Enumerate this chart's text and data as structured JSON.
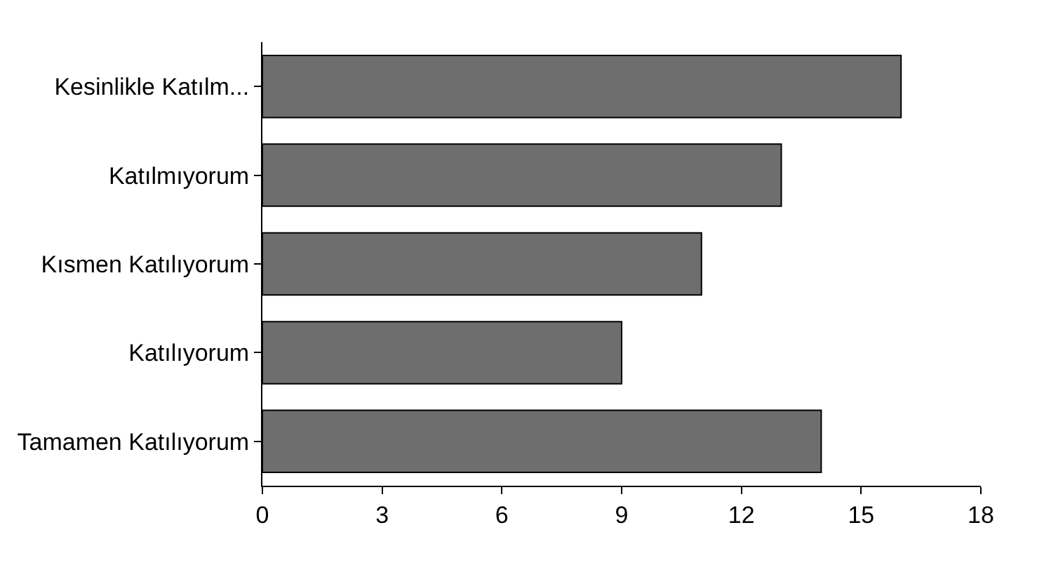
{
  "chart_data": {
    "type": "bar",
    "orientation": "horizontal",
    "categories": [
      "Kesinlikle Katılm...",
      "Katılmıyorum",
      "Kısmen Katılıyorum",
      "Katılıyorum",
      "Tamamen Katılıyorum"
    ],
    "values": [
      16,
      13,
      11,
      9,
      14
    ],
    "color": "#6e6e6e",
    "xlim": [
      0,
      18
    ],
    "xticks": [
      0,
      3,
      6,
      9,
      12,
      15,
      18
    ]
  }
}
